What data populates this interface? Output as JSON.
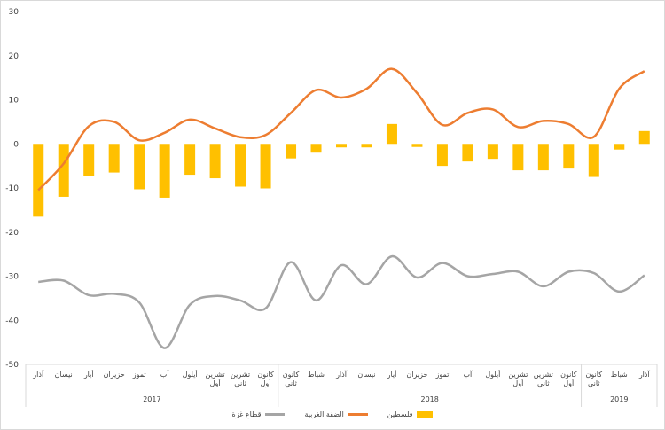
{
  "chart_data": {
    "type": "bar+line",
    "y_axis": {
      "min": -50,
      "max": 30,
      "step": 10,
      "ticks": [
        "30",
        "20",
        "10",
        "0",
        "-10",
        "-20",
        "-30",
        "-40",
        "-50"
      ]
    },
    "categories": [
      "آذار",
      "نيسان",
      "أيار",
      "حزيران",
      "تموز",
      "آب",
      "أيلول",
      "تشرين أول",
      "تشرين ثاني",
      "كانون أول",
      "كانون ثاني",
      "شباط",
      "آذار",
      "نيسان",
      "أيار",
      "حزيران",
      "تموز",
      "آب",
      "أيلول",
      "تشرين أول",
      "تشرين ثاني",
      "كانون أول",
      "كانون ثاني",
      "شباط",
      "آذار"
    ],
    "years": [
      {
        "label": "2017",
        "from": 0,
        "to": 9
      },
      {
        "label": "2018",
        "from": 10,
        "to": 21
      },
      {
        "label": "2019",
        "from": 22,
        "to": 24
      }
    ],
    "series": [
      {
        "name": "فلسطين",
        "kind": "bar",
        "color": "#ffc000",
        "values": [
          -16.5,
          -12,
          -7.3,
          -6.5,
          -10.3,
          -12.2,
          -7,
          -7.8,
          -9.7,
          -10.1,
          -3.3,
          -2,
          -0.8,
          -0.8,
          4.5,
          -0.7,
          -5,
          -4,
          -3.4,
          -6,
          -6,
          -5.6,
          -7.5,
          -1.3,
          2.9
        ]
      },
      {
        "name": "الضفة الغربية",
        "kind": "line",
        "color": "#ed7d31",
        "values": [
          -10.5,
          -4.5,
          4,
          5,
          0.8,
          2.5,
          5.5,
          3.5,
          1.5,
          2,
          7,
          12.2,
          10.5,
          12.5,
          17,
          11.5,
          4.3,
          7,
          7.8,
          3.8,
          5.2,
          4.5,
          1.6,
          12.5,
          16.5
        ]
      },
      {
        "name": "قطاع غزة",
        "kind": "line",
        "color": "#a5a5a5",
        "values": [
          -31.3,
          -31,
          -34.3,
          -34,
          -36,
          -46.3,
          -36.5,
          -34.5,
          -35.5,
          -37.3,
          -26.8,
          -35.5,
          -27.5,
          -31.8,
          -25.5,
          -30.3,
          -27,
          -30,
          -29.5,
          -29,
          -32.3,
          -29,
          -29.3,
          -33.5,
          -29.8
        ]
      }
    ],
    "legend_position": "bottom",
    "grid": false
  }
}
